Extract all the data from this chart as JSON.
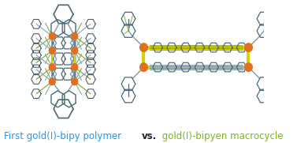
{
  "text_parts": [
    {
      "text": "First gold(I)-bipy polymer ",
      "color": "#2196F3",
      "bold": false
    },
    {
      "text": "vs.",
      "color": "#222222",
      "bold": true
    },
    {
      "text": " gold(I)-bipyen macrocycle",
      "color": "#7CB518",
      "bold": false
    }
  ],
  "background_color": "#ffffff",
  "text_fontsize": 8.5,
  "fig_width": 3.77,
  "fig_height": 1.81,
  "dpi": 100,
  "c_dark": "#4a6878",
  "c_orange": "#E07020",
  "c_yellow": "#d4d400",
  "c_green": "#8aaa40",
  "c_blue": "#6080a8",
  "c_lgray": "#8aabba",
  "c_gray": "#789aaa",
  "c_navy": "#384858"
}
